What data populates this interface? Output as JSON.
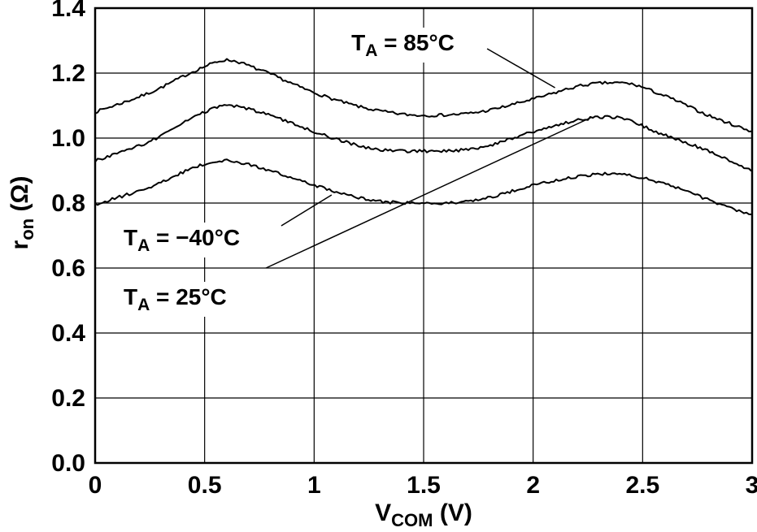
{
  "page": {
    "background": "#ffffff"
  },
  "chart_data": {
    "type": "line",
    "title": "",
    "xlabel_parts": [
      {
        "t": "V"
      },
      {
        "t": "COM",
        "sub": true
      },
      {
        "t": " (V)"
      }
    ],
    "ylabel_parts": [
      {
        "t": "r"
      },
      {
        "t": "on",
        "sub": true
      },
      {
        "t": " (Ω)"
      }
    ],
    "xlim": [
      0,
      3
    ],
    "ylim": [
      0,
      1.4
    ],
    "xticks": [
      {
        "v": 0,
        "label": "0"
      },
      {
        "v": 0.5,
        "label": "0.5"
      },
      {
        "v": 1,
        "label": "1"
      },
      {
        "v": 1.5,
        "label": "1.5"
      },
      {
        "v": 2,
        "label": "2"
      },
      {
        "v": 2.5,
        "label": "2.5"
      },
      {
        "v": 3,
        "label": "3"
      }
    ],
    "yticks": [
      {
        "v": 0,
        "label": "0.0"
      },
      {
        "v": 0.2,
        "label": "0.2"
      },
      {
        "v": 0.4,
        "label": "0.4"
      },
      {
        "v": 0.6,
        "label": "0.6"
      },
      {
        "v": 0.8,
        "label": "0.8"
      },
      {
        "v": 1.0,
        "label": "1.0"
      },
      {
        "v": 1.2,
        "label": "1.2"
      },
      {
        "v": 1.4,
        "label": "1.4"
      }
    ],
    "grid": true,
    "line_color": "#000000",
    "noise_amplitude": 0.0045,
    "series": [
      {
        "name": "TA = 85°C",
        "x": [
          0,
          0.25,
          0.5,
          0.6,
          0.75,
          1.0,
          1.25,
          1.5,
          1.75,
          2.0,
          2.25,
          2.4,
          2.6,
          2.8,
          3.0
        ],
        "y": [
          1.08,
          1.14,
          1.22,
          1.24,
          1.21,
          1.14,
          1.09,
          1.07,
          1.08,
          1.12,
          1.165,
          1.17,
          1.13,
          1.07,
          1.02
        ]
      },
      {
        "name": "TA = 25°C",
        "x": [
          0,
          0.25,
          0.5,
          0.6,
          0.75,
          1.0,
          1.25,
          1.5,
          1.75,
          2.0,
          2.25,
          2.35,
          2.6,
          2.8,
          3.0
        ],
        "y": [
          0.93,
          0.99,
          1.08,
          1.1,
          1.08,
          1.02,
          0.97,
          0.96,
          0.97,
          1.02,
          1.06,
          1.065,
          1.01,
          0.96,
          0.9
        ]
      },
      {
        "name": "TA = −40°C",
        "x": [
          0,
          0.25,
          0.5,
          0.6,
          0.75,
          1.0,
          1.25,
          1.5,
          1.75,
          2.0,
          2.25,
          2.35,
          2.6,
          2.8,
          3.0
        ],
        "y": [
          0.795,
          0.85,
          0.92,
          0.93,
          0.91,
          0.855,
          0.81,
          0.8,
          0.81,
          0.855,
          0.885,
          0.89,
          0.86,
          0.81,
          0.76
        ]
      }
    ],
    "annotations": [
      {
        "id": "label-85c",
        "parts": [
          {
            "t": "T"
          },
          {
            "t": "A",
            "sub": true
          },
          {
            "t": " = 85°C"
          }
        ],
        "tx": 1.17,
        "ty": 1.295,
        "line": {
          "x1": 1.79,
          "y1": 1.275,
          "x2": 2.1,
          "y2": 1.155
        }
      },
      {
        "id": "label-minus40c",
        "parts": [
          {
            "t": "T"
          },
          {
            "t": "A",
            "sub": true
          },
          {
            "t": " = −40°C"
          }
        ],
        "tx": 0.13,
        "ty": 0.695,
        "line": {
          "x1": 0.85,
          "y1": 0.73,
          "x2": 1.08,
          "y2": 0.825
        }
      },
      {
        "id": "label-25c",
        "parts": [
          {
            "t": "T"
          },
          {
            "t": "A",
            "sub": true
          },
          {
            "t": " = 25°C"
          }
        ],
        "tx": 0.13,
        "ty": 0.5125,
        "line": {
          "x1": 0.78,
          "y1": 0.6,
          "x2": 2.27,
          "y2": 1.065
        }
      }
    ]
  }
}
